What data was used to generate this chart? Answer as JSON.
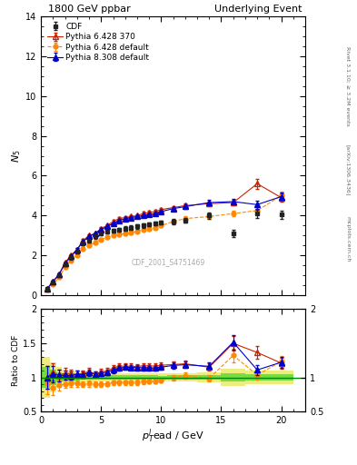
{
  "title_left": "1800 GeV ppbar",
  "title_right": "Underlying Event",
  "ylabel_main": "$N_5$",
  "ylabel_ratio": "Ratio to CDF",
  "xlabel": "$p_T^l$ead / GeV",
  "watermark": "CDF_2001_S4751469",
  "rivet_label": "Rivet 3.1.10; ≥ 3.2M events",
  "arxiv_label": "[arXiv:1306.3436]",
  "mcplots_label": "mcplots.cern.ch",
  "cdf_x": [
    0.5,
    1.0,
    1.5,
    2.0,
    2.5,
    3.0,
    3.5,
    4.0,
    4.5,
    5.0,
    5.5,
    6.0,
    6.5,
    7.0,
    7.5,
    8.0,
    8.5,
    9.0,
    9.5,
    10.0,
    11.0,
    12.0,
    14.0,
    16.0,
    18.0,
    20.0
  ],
  "cdf_y": [
    0.33,
    0.65,
    1.02,
    1.55,
    1.9,
    2.2,
    2.6,
    2.75,
    2.95,
    3.1,
    3.2,
    3.25,
    3.3,
    3.35,
    3.4,
    3.45,
    3.5,
    3.55,
    3.6,
    3.65,
    3.7,
    3.75,
    4.0,
    3.1,
    4.1,
    4.05
  ],
  "cdf_yerr": [
    0.05,
    0.07,
    0.08,
    0.09,
    0.1,
    0.1,
    0.1,
    0.1,
    0.1,
    0.1,
    0.1,
    0.1,
    0.1,
    0.1,
    0.1,
    0.1,
    0.1,
    0.1,
    0.1,
    0.1,
    0.12,
    0.12,
    0.15,
    0.2,
    0.2,
    0.2
  ],
  "py6428_370_x": [
    0.5,
    1.0,
    1.5,
    2.0,
    2.5,
    3.0,
    3.5,
    4.0,
    4.5,
    5.0,
    5.5,
    6.0,
    6.5,
    7.0,
    7.5,
    8.0,
    8.5,
    9.0,
    9.5,
    10.0,
    11.0,
    12.0,
    14.0,
    16.0,
    18.0,
    20.0
  ],
  "py6428_370_y": [
    0.33,
    0.7,
    1.05,
    1.65,
    2.0,
    2.3,
    2.75,
    3.0,
    3.1,
    3.35,
    3.5,
    3.7,
    3.85,
    3.9,
    3.95,
    4.0,
    4.1,
    4.15,
    4.2,
    4.3,
    4.4,
    4.5,
    4.6,
    4.65,
    5.6,
    4.9
  ],
  "py6428_370_yerr": [
    0.02,
    0.03,
    0.04,
    0.05,
    0.05,
    0.06,
    0.06,
    0.07,
    0.07,
    0.07,
    0.07,
    0.07,
    0.07,
    0.07,
    0.07,
    0.07,
    0.08,
    0.08,
    0.08,
    0.08,
    0.09,
    0.1,
    0.12,
    0.15,
    0.25,
    0.2
  ],
  "py6428_def_x": [
    0.5,
    1.0,
    1.5,
    2.0,
    2.5,
    3.0,
    3.5,
    4.0,
    4.5,
    5.0,
    5.5,
    6.0,
    6.5,
    7.0,
    7.5,
    8.0,
    8.5,
    9.0,
    9.5,
    10.0,
    11.0,
    12.0,
    14.0,
    16.0,
    18.0,
    20.0
  ],
  "py6428_def_y": [
    0.3,
    0.55,
    0.9,
    1.4,
    1.75,
    2.0,
    2.35,
    2.5,
    2.65,
    2.8,
    2.9,
    3.0,
    3.05,
    3.1,
    3.15,
    3.2,
    3.3,
    3.35,
    3.4,
    3.5,
    3.7,
    3.85,
    3.95,
    4.1,
    4.25,
    5.0
  ],
  "py6428_def_yerr": [
    0.02,
    0.03,
    0.04,
    0.05,
    0.05,
    0.06,
    0.06,
    0.07,
    0.07,
    0.07,
    0.07,
    0.07,
    0.07,
    0.07,
    0.07,
    0.07,
    0.08,
    0.08,
    0.08,
    0.08,
    0.09,
    0.1,
    0.12,
    0.15,
    0.2,
    0.2
  ],
  "py8308_def_x": [
    0.5,
    1.0,
    1.5,
    2.0,
    2.5,
    3.0,
    3.5,
    4.0,
    4.5,
    5.0,
    5.5,
    6.0,
    6.5,
    7.0,
    7.5,
    8.0,
    8.5,
    9.0,
    9.5,
    10.0,
    11.0,
    12.0,
    14.0,
    16.0,
    18.0,
    20.0
  ],
  "py8308_def_y": [
    0.33,
    0.68,
    1.05,
    1.6,
    1.95,
    2.3,
    2.7,
    2.95,
    3.1,
    3.3,
    3.45,
    3.6,
    3.75,
    3.85,
    3.9,
    3.95,
    4.0,
    4.05,
    4.1,
    4.2,
    4.35,
    4.45,
    4.65,
    4.7,
    4.55,
    4.95
  ],
  "py8308_def_yerr": [
    0.02,
    0.03,
    0.04,
    0.05,
    0.05,
    0.06,
    0.06,
    0.07,
    0.07,
    0.07,
    0.07,
    0.07,
    0.07,
    0.07,
    0.07,
    0.07,
    0.08,
    0.08,
    0.08,
    0.08,
    0.09,
    0.1,
    0.12,
    0.15,
    0.2,
    0.2
  ],
  "main_ylim": [
    0,
    14
  ],
  "ratio_ylim": [
    0.5,
    2.0
  ],
  "xlim": [
    0,
    22
  ],
  "xticks": [
    0,
    5,
    10,
    15,
    20
  ],
  "cdf_color": "#222222",
  "py6428_370_color": "#cc2200",
  "py6428_def_color": "#ff8800",
  "py8308_def_color": "#0000cc",
  "yellow_band_color": "#dddd00",
  "green_band_color": "#00cc00",
  "yellow_band_alpha": 0.5,
  "green_band_alpha": 0.5,
  "ratio_yticks": [
    0.5,
    1.0,
    1.5,
    2.0
  ],
  "ratio_ytick_labels": [
    "0.5",
    "1",
    "1.5",
    "2"
  ]
}
